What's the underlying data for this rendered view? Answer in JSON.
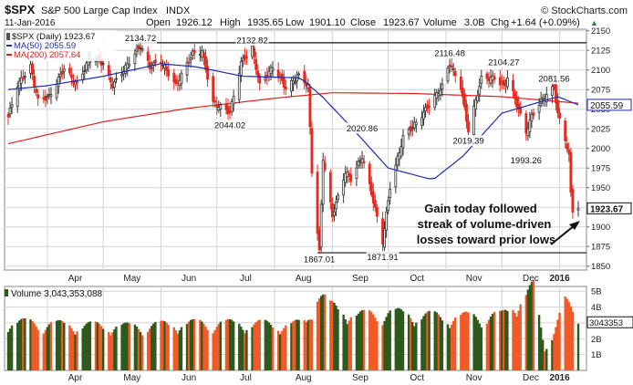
{
  "header": {
    "symbol": "$SPX",
    "name": "S&P 500 Large Cap Index",
    "exchange": "INDX",
    "watermark": "© StockCharts.com",
    "date": "11-Jan-2016",
    "open_label": "Open",
    "open": "1926.12",
    "high_label": "High",
    "high": "1935.65",
    "low_label": "Low",
    "low": "1901.10",
    "close_label": "Close",
    "close": "1923.67",
    "volume_label": "Volume",
    "volume": "3.0B",
    "chg_label": "Chg",
    "chg": "+1.64 (+0.09%)",
    "up_arrow": "▲"
  },
  "legend": {
    "price": "$SPX (Daily) 1923.67",
    "ma50": "MA(50) 2055.59",
    "ma200": "MA(200) 2057.64"
  },
  "colors": {
    "up": "#2e7d32",
    "down": "#e8281c",
    "ma50": "#1f2bb0",
    "ma200": "#e02020",
    "vol_up": "#2d5a1c",
    "vol_down": "#f05a28",
    "text": "#111111",
    "grid": "#d4d4d4"
  },
  "chart_data": {
    "type": "candlestick",
    "y_ticks": [
      1850,
      1875,
      1900,
      1925,
      1950,
      1975,
      2000,
      2025,
      2050,
      2075,
      2100,
      2125,
      2150
    ],
    "ylim": [
      1845,
      2152
    ],
    "x_ticks": [
      "Apr",
      "May",
      "Jun",
      "Jul",
      "Aug",
      "Sep",
      "Oct",
      "Nov",
      "Dec",
      "2016"
    ],
    "price_annotations": [
      "2134.72",
      "2132.82",
      "2044.02",
      "2020.86",
      "1867.01",
      "1871.91",
      "2116.48",
      "2104.27",
      "2019.39",
      "1993.26",
      "2081.56"
    ],
    "reference_lines": [
      2134.72,
      1867.01
    ],
    "last_price_tag": "1923.67",
    "ma50_tag": "2055.59",
    "close_path": [
      {
        "d": "2015-03-11",
        "v": 2040
      },
      {
        "d": "2015-03-16",
        "v": 2081
      },
      {
        "d": "2015-03-23",
        "v": 2104
      },
      {
        "d": "2015-03-27",
        "v": 2061
      },
      {
        "d": "2015-04-02",
        "v": 2066
      },
      {
        "d": "2015-04-10",
        "v": 2102
      },
      {
        "d": "2015-04-17",
        "v": 2081
      },
      {
        "d": "2015-04-24",
        "v": 2117
      },
      {
        "d": "2015-05-01",
        "v": 2108
      },
      {
        "d": "2015-05-06",
        "v": 2080
      },
      {
        "d": "2015-05-12",
        "v": 2100
      },
      {
        "d": "2015-05-21",
        "v": 2131
      },
      {
        "d": "2015-05-26",
        "v": 2104
      },
      {
        "d": "2015-06-01",
        "v": 2111
      },
      {
        "d": "2015-06-09",
        "v": 2080
      },
      {
        "d": "2015-06-18",
        "v": 2121
      },
      {
        "d": "2015-06-23",
        "v": 2124
      },
      {
        "d": "2015-06-29",
        "v": 2058
      },
      {
        "d": "2015-07-08",
        "v": 2046
      },
      {
        "d": "2015-07-14",
        "v": 2109
      },
      {
        "d": "2015-07-20",
        "v": 2128
      },
      {
        "d": "2015-07-24",
        "v": 2080
      },
      {
        "d": "2015-07-31",
        "v": 2104
      },
      {
        "d": "2015-08-07",
        "v": 2077
      },
      {
        "d": "2015-08-14",
        "v": 2092
      },
      {
        "d": "2015-08-19",
        "v": 2080
      },
      {
        "d": "2015-08-21",
        "v": 1971
      },
      {
        "d": "2015-08-24",
        "v": 1893
      },
      {
        "d": "2015-08-25",
        "v": 1868
      },
      {
        "d": "2015-08-27",
        "v": 1988
      },
      {
        "d": "2015-09-01",
        "v": 1914
      },
      {
        "d": "2015-09-08",
        "v": 1970
      },
      {
        "d": "2015-09-11",
        "v": 1961
      },
      {
        "d": "2015-09-17",
        "v": 1990
      },
      {
        "d": "2015-09-22",
        "v": 1943
      },
      {
        "d": "2015-09-28",
        "v": 1881
      },
      {
        "d": "2015-10-02",
        "v": 1951
      },
      {
        "d": "2015-10-09",
        "v": 2014
      },
      {
        "d": "2015-10-16",
        "v": 2033
      },
      {
        "d": "2015-10-22",
        "v": 2052
      },
      {
        "d": "2015-10-30",
        "v": 2079
      },
      {
        "d": "2015-11-03",
        "v": 2109
      },
      {
        "d": "2015-11-09",
        "v": 2078
      },
      {
        "d": "2015-11-13",
        "v": 2023
      },
      {
        "d": "2015-11-20",
        "v": 2089
      },
      {
        "d": "2015-11-27",
        "v": 2090
      },
      {
        "d": "2015-12-02",
        "v": 2079
      },
      {
        "d": "2015-12-04",
        "v": 2091
      },
      {
        "d": "2015-12-08",
        "v": 2063
      },
      {
        "d": "2015-12-14",
        "v": 2021
      },
      {
        "d": "2015-12-17",
        "v": 2041
      },
      {
        "d": "2015-12-23",
        "v": 2064
      },
      {
        "d": "2015-12-29",
        "v": 2078
      },
      {
        "d": "2015-12-31",
        "v": 2044
      },
      {
        "d": "2016-01-04",
        "v": 2012
      },
      {
        "d": "2016-01-06",
        "v": 1990
      },
      {
        "d": "2016-01-07",
        "v": 1943
      },
      {
        "d": "2016-01-08",
        "v": 1922
      },
      {
        "d": "2016-01-11",
        "v": 1923.67
      }
    ],
    "ma50_path": [
      {
        "d": "2015-03-11",
        "v": 2075
      },
      {
        "d": "2015-04-01",
        "v": 2080
      },
      {
        "d": "2015-05-01",
        "v": 2092
      },
      {
        "d": "2015-06-01",
        "v": 2108
      },
      {
        "d": "2015-06-20",
        "v": 2104
      },
      {
        "d": "2015-07-15",
        "v": 2092
      },
      {
        "d": "2015-08-15",
        "v": 2090
      },
      {
        "d": "2015-08-27",
        "v": 2065
      },
      {
        "d": "2015-09-10",
        "v": 2030
      },
      {
        "d": "2015-10-01",
        "v": 1975
      },
      {
        "d": "2015-10-25",
        "v": 1960
      },
      {
        "d": "2015-11-10",
        "v": 1990
      },
      {
        "d": "2015-12-01",
        "v": 2045
      },
      {
        "d": "2015-12-31",
        "v": 2066
      },
      {
        "d": "2016-01-11",
        "v": 2055.59
      }
    ],
    "ma200_path": [
      {
        "d": "2015-03-11",
        "v": 2006
      },
      {
        "d": "2015-05-01",
        "v": 2034
      },
      {
        "d": "2015-06-15",
        "v": 2051
      },
      {
        "d": "2015-08-01",
        "v": 2064
      },
      {
        "d": "2015-09-01",
        "v": 2071
      },
      {
        "d": "2015-10-15",
        "v": 2070
      },
      {
        "d": "2015-12-01",
        "v": 2066
      },
      {
        "d": "2016-01-11",
        "v": 2057.64
      }
    ],
    "annotation": "Gain today followed streak of volume-driven losses toward prior lows",
    "volume_panel": {
      "label": "Volume 3,043,353,088",
      "y_ticks": [
        "5B",
        "4B",
        "3B",
        "2B",
        "1B"
      ],
      "ylim": [
        0,
        5.3
      ],
      "last_volume_tag": "3043353",
      "profile": [
        {
          "d": "2015-03-11",
          "v": 3.1
        },
        {
          "d": "2015-04-15",
          "v": 2.9
        },
        {
          "d": "2015-05-15",
          "v": 2.8
        },
        {
          "d": "2015-06-15",
          "v": 3.0
        },
        {
          "d": "2015-07-15",
          "v": 3.0
        },
        {
          "d": "2015-08-10",
          "v": 2.9
        },
        {
          "d": "2015-08-18",
          "v": 3.1
        },
        {
          "d": "2015-08-24",
          "v": 5.1
        },
        {
          "d": "2015-08-31",
          "v": 4.1
        },
        {
          "d": "2015-09-15",
          "v": 3.5
        },
        {
          "d": "2015-10-01",
          "v": 3.7
        },
        {
          "d": "2015-11-01",
          "v": 3.4
        },
        {
          "d": "2015-12-01",
          "v": 3.5
        },
        {
          "d": "2015-12-18",
          "v": 5.3
        },
        {
          "d": "2015-12-24",
          "v": 1.3
        },
        {
          "d": "2016-01-04",
          "v": 4.4
        },
        {
          "d": "2016-01-11",
          "v": 3.0
        }
      ]
    }
  }
}
